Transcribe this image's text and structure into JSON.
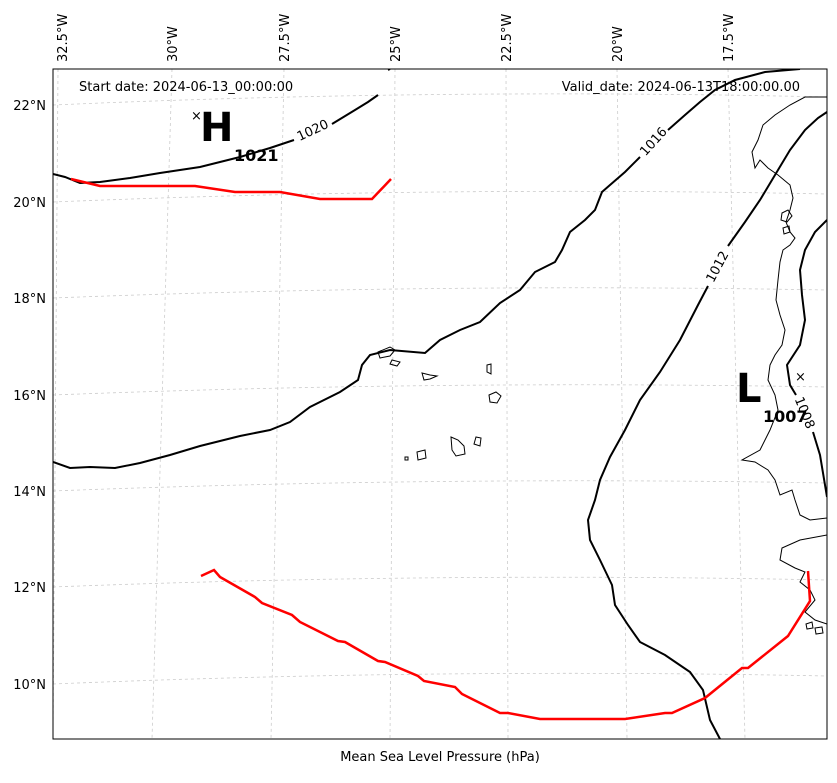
{
  "header": {
    "start_date": "Start date: 2024-06-13_00:00:00",
    "valid_date": "Valid_date: 2024-06-13T18:00:00.00"
  },
  "axes": {
    "xlabel": "Mean Sea Level Pressure (hPa)",
    "lon_ticks": [
      "32.5°W",
      "30°W",
      "27.5°W",
      "25°W",
      "22.5°W",
      "20°W",
      "17.5°W"
    ],
    "lat_ticks": [
      "22°N",
      "20°N",
      "18°N",
      "16°N",
      "14°N",
      "12°N",
      "10°N"
    ]
  },
  "contour_labels": [
    "1020",
    "1016",
    "1012",
    "1008"
  ],
  "pressure_centers": {
    "high": {
      "letter": "H",
      "value": "1021"
    },
    "low": {
      "letter": "L",
      "value": "1007"
    }
  },
  "colors": {
    "isobar": "#000000",
    "track": "#ff0000",
    "grid": "#cccccc"
  }
}
